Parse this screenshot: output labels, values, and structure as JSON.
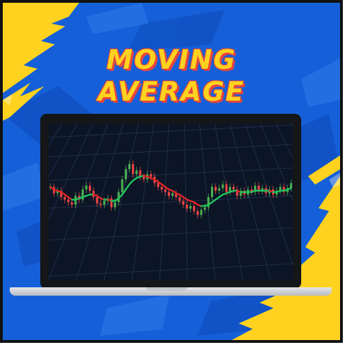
{
  "title": {
    "line1": "MOVING",
    "line2": "AVERAGE"
  },
  "colors": {
    "background": "#1560d8",
    "accent_yellow": "#ffd21f",
    "title_outline": "#e8453c",
    "screen": "#0c1526",
    "candle_up": "#4caf50",
    "candle_down": "#ef4444",
    "ma_up": "#22c55e",
    "ma_down": "#dc2626"
  },
  "chart_data": {
    "type": "candlestick",
    "series": [
      {
        "values": [
          52,
          47,
          49,
          44,
          42,
          40,
          38,
          45,
          42,
          50,
          53,
          49,
          44,
          39,
          38,
          41,
          43,
          36,
          40,
          48,
          58,
          66,
          70,
          62,
          65,
          60,
          58,
          62,
          60,
          55,
          52,
          50,
          48,
          45,
          47,
          44,
          41,
          38,
          35,
          37,
          33,
          30,
          34,
          36,
          44,
          52,
          49,
          51,
          54,
          48,
          52,
          50,
          45,
          49,
          46,
          50,
          48,
          53,
          49,
          51,
          47,
          50,
          46,
          49,
          52,
          48,
          51,
          55
        ]
      }
    ],
    "moving_average": [
      52,
      50,
      49,
      48,
      46,
      44,
      42,
      42,
      43,
      44,
      45,
      46,
      46,
      45,
      43,
      42,
      42,
      41,
      41,
      43,
      46,
      50,
      54,
      57,
      59,
      60,
      61,
      60,
      59,
      58,
      56,
      54,
      52,
      50,
      49,
      47,
      46,
      44,
      42,
      41,
      40,
      38,
      37,
      37,
      38,
      40,
      42,
      44,
      46,
      47,
      48,
      49,
      49,
      48,
      48,
      48,
      48,
      49,
      49,
      49,
      49,
      49,
      48,
      48,
      49,
      49,
      50,
      51
    ],
    "grid": true
  }
}
